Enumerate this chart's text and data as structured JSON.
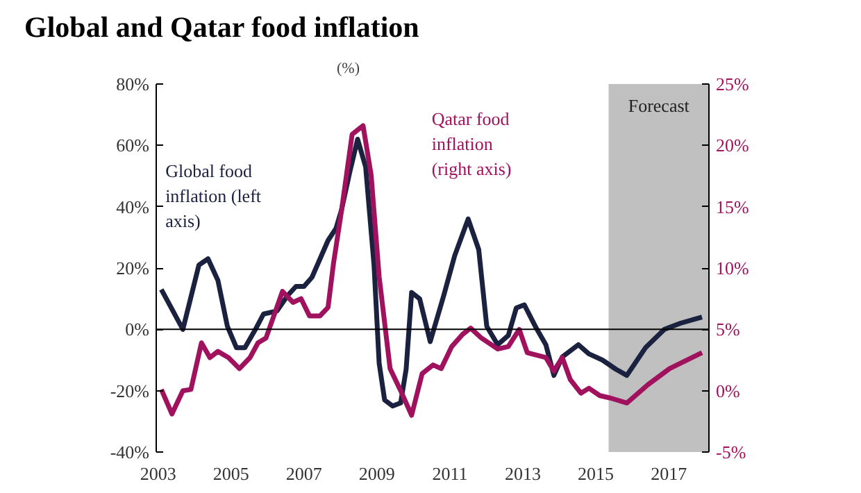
{
  "chart_data": {
    "type": "line",
    "title": "Global and Qatar food inflation",
    "subtitle": "(%)",
    "xlim": [
      2002.95,
      2018.1
    ],
    "xticks": [
      2003,
      2005,
      2007,
      2009,
      2011,
      2013,
      2015,
      2017
    ],
    "ylim": [
      -40,
      80
    ],
    "yticks": [
      {
        "value": -40,
        "label": "-40%"
      },
      {
        "value": -20,
        "label": "-20%"
      },
      {
        "value": 0,
        "label": "0%"
      },
      {
        "value": 20,
        "label": "20%"
      },
      {
        "value": 40,
        "label": "40%"
      },
      {
        "value": 60,
        "label": "60%"
      },
      {
        "value": 80,
        "label": "80%"
      }
    ],
    "y2lim": [
      -5,
      25
    ],
    "y2ticks": [
      {
        "value": -5,
        "label": "-5%"
      },
      {
        "value": 0,
        "label": "0%"
      },
      {
        "value": 5,
        "label": "5%"
      },
      {
        "value": 10,
        "label": "10%"
      },
      {
        "value": 15,
        "label": "15%"
      },
      {
        "value": 20,
        "label": "20%"
      },
      {
        "value": 25,
        "label": "25%"
      }
    ],
    "grid": false,
    "marker": "none",
    "line_style": "solid",
    "ref_lines": [
      {
        "axis": "y",
        "value": 0,
        "color": "#000000"
      }
    ],
    "bands": [
      {
        "axis": "x",
        "from": 2015.35,
        "to": 2018.1,
        "label": "Forecast",
        "color": "#c0c0c0"
      }
    ],
    "series": [
      {
        "name": "Global food\ninflation (left\naxis)",
        "color": "#1a2240",
        "x": [
          2003.09,
          2003.68,
          2004.12,
          2004.37,
          2004.64,
          2004.9,
          2005.15,
          2005.38,
          2005.67,
          2005.89,
          2006.26,
          2006.55,
          2006.78,
          2007.0,
          2007.22,
          2007.44,
          2007.66,
          2007.88,
          2008.03,
          2008.25,
          2008.47,
          2008.69,
          2008.92,
          2009.06,
          2009.21,
          2009.43,
          2009.65,
          2009.8,
          2009.95,
          2010.17,
          2010.46,
          2010.83,
          2011.13,
          2011.5,
          2011.79,
          2012.01,
          2012.31,
          2012.6,
          2012.82,
          2013.04,
          2013.34,
          2013.63,
          2013.85,
          2014.08,
          2014.52,
          2014.81,
          2015.18,
          2015.55,
          2015.85,
          2016.36,
          2016.88,
          2017.32,
          2017.91
        ],
        "values": [
          13,
          0,
          21,
          23,
          16,
          1,
          -6,
          -6,
          0,
          5,
          6,
          11,
          14,
          14,
          17,
          23,
          29,
          33,
          39,
          51,
          62,
          53,
          21,
          -11,
          -23,
          -25,
          -24,
          -13,
          12,
          10,
          -4,
          11,
          24,
          36,
          26,
          1,
          -5,
          -2,
          7,
          8,
          1,
          -5,
          -15,
          -9,
          -5,
          -8,
          -10,
          -13,
          -15,
          -6,
          0,
          2,
          4
        ]
      },
      {
        "name": "Qatar food\ninflation\n(right axis)",
        "color": "#a0125e",
        "axis": "y2",
        "x": [
          2003.09,
          2003.38,
          2003.68,
          2003.9,
          2004.19,
          2004.42,
          2004.64,
          2004.93,
          2005.23,
          2005.52,
          2005.74,
          2005.96,
          2006.41,
          2006.7,
          2006.92,
          2007.15,
          2007.44,
          2007.66,
          2007.81,
          2008.03,
          2008.32,
          2008.62,
          2008.84,
          2009.06,
          2009.36,
          2009.65,
          2009.95,
          2010.24,
          2010.54,
          2010.76,
          2011.05,
          2011.35,
          2011.57,
          2011.86,
          2012.31,
          2012.6,
          2012.9,
          2013.12,
          2013.63,
          2013.85,
          2014.08,
          2014.3,
          2014.59,
          2014.81,
          2015.11,
          2015.4,
          2015.85,
          2016.43,
          2017.02,
          2017.91
        ],
        "values": [
          0.1,
          -1.9,
          0,
          0.1,
          3.9,
          2.7,
          3.2,
          2.7,
          1.8,
          2.7,
          3.9,
          4.3,
          8.1,
          7.2,
          7.5,
          6.1,
          6.1,
          6.8,
          10.4,
          14.7,
          20.9,
          21.6,
          17.6,
          9.3,
          1.8,
          0,
          -2,
          1.4,
          2.1,
          1.8,
          3.6,
          4.6,
          5.1,
          4.3,
          3.4,
          3.6,
          5,
          3.1,
          2.7,
          1.6,
          2.7,
          0.9,
          -0.2,
          0.2,
          -0.4,
          -0.6,
          -1,
          0.5,
          1.8,
          3.1
        ]
      }
    ]
  }
}
